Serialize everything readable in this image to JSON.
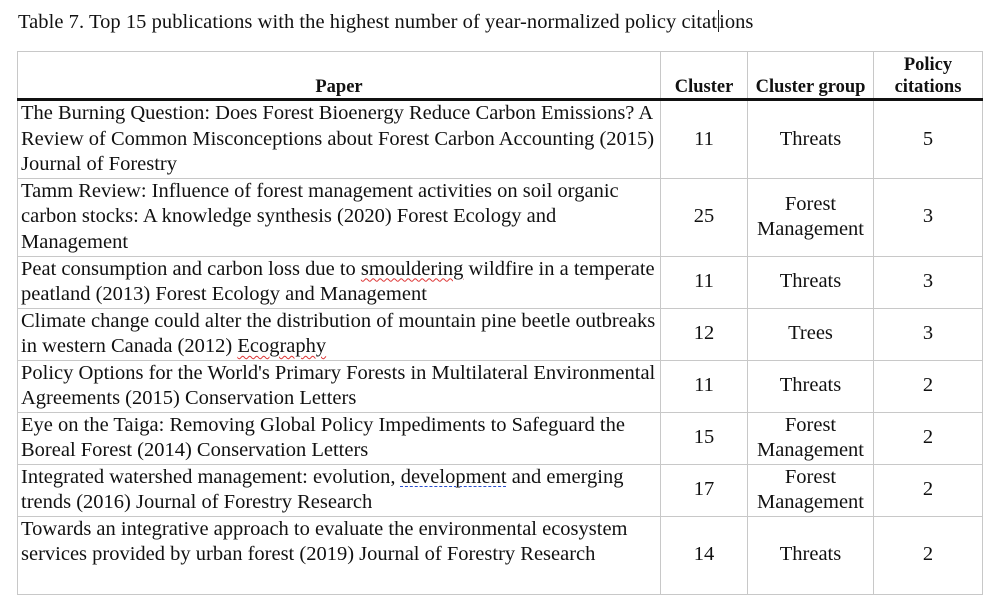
{
  "caption_before_caret": "Table 7. Top 15 publications with the highest number of year-normalized policy citat",
  "caption_after_caret": "ions",
  "headers": {
    "paper": "Paper",
    "cluster": "Cluster",
    "cluster_group": "Cluster group",
    "policy_line1": "Policy",
    "policy_line2": "citations"
  },
  "rows": [
    {
      "paper": "The Burning Question: Does Forest Bioenergy Reduce Carbon Emissions? A Review of Common Misconceptions about Forest Carbon Accounting (2015) Journal of Forestry",
      "cluster": "11",
      "cluster_group": "Threats",
      "policy_citations": "5"
    },
    {
      "paper": "Tamm Review: Influence of forest management activities on soil organic carbon stocks: A knowledge synthesis (2020) Forest Ecology and Management",
      "cluster": "25",
      "cluster_group": "Forest Management",
      "policy_citations": "3"
    },
    {
      "paper_pre": "Peat consumption and carbon loss due to ",
      "paper_mark": "smouldering",
      "paper_post": " wildfire in a temperate peatland (2013) Forest Ecology and Management",
      "cluster": "11",
      "cluster_group": "Threats",
      "policy_citations": "3"
    },
    {
      "paper_pre": "Climate change could alter the distribution of mountain pine beetle outbreaks in western Canada (2012) ",
      "paper_mark": "Ecography",
      "paper_post": "",
      "cluster": "12",
      "cluster_group": "Trees",
      "policy_citations": "3"
    },
    {
      "paper": "Policy Options for the World's Primary Forests in Multilateral Environmental Agreements (2015) Conservation Letters",
      "cluster": "11",
      "cluster_group": "Threats",
      "policy_citations": "2"
    },
    {
      "paper": "Eye on the Taiga: Removing Global Policy Impediments to Safeguard the Boreal Forest (2014) Conservation Letters",
      "cluster": "15",
      "cluster_group": "Forest Management",
      "policy_citations": "2"
    },
    {
      "paper_pre": "Integrated watershed management: evolution, ",
      "paper_mark": "development",
      "paper_post": " and emerging trends (2016) Journal of Forestry Research",
      "cluster": "17",
      "cluster_group": "Forest Management",
      "policy_citations": "2"
    },
    {
      "paper": "Towards an integrative approach to evaluate the environmental ecosystem services provided by urban forest (2019) Journal of Forestry Research",
      "cluster": "14",
      "cluster_group": "Threats",
      "policy_citations": "2"
    }
  ]
}
